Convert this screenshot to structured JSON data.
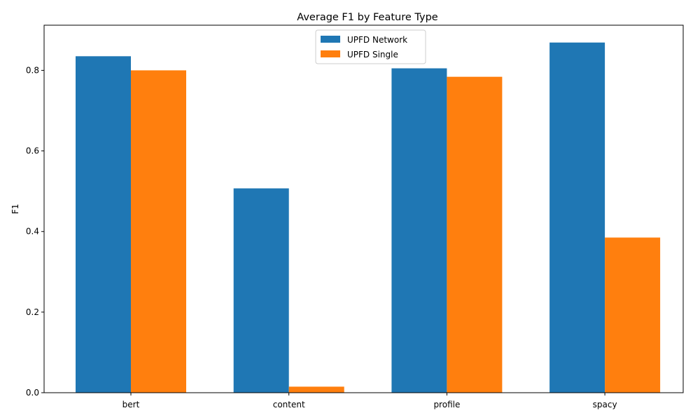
{
  "chart_data": {
    "type": "bar",
    "title": "Average F1 by Feature Type",
    "xlabel": "",
    "ylabel": "F1",
    "categories": [
      "bert",
      "content",
      "profile",
      "spacy"
    ],
    "series": [
      {
        "name": "UPFD Network",
        "color": "#1f77b4",
        "values": [
          0.835,
          0.507,
          0.805,
          0.869
        ]
      },
      {
        "name": "UPFD Single",
        "color": "#ff7f0e",
        "values": [
          0.8,
          0.015,
          0.784,
          0.385
        ]
      }
    ],
    "ylim": [
      0,
      0.912
    ],
    "yticks": [
      0.0,
      0.2,
      0.4,
      0.6,
      0.8
    ],
    "ytick_labels": [
      "0.0",
      "0.2",
      "0.4",
      "0.6",
      "0.8"
    ],
    "grid": false,
    "legend_position": "top-center"
  }
}
